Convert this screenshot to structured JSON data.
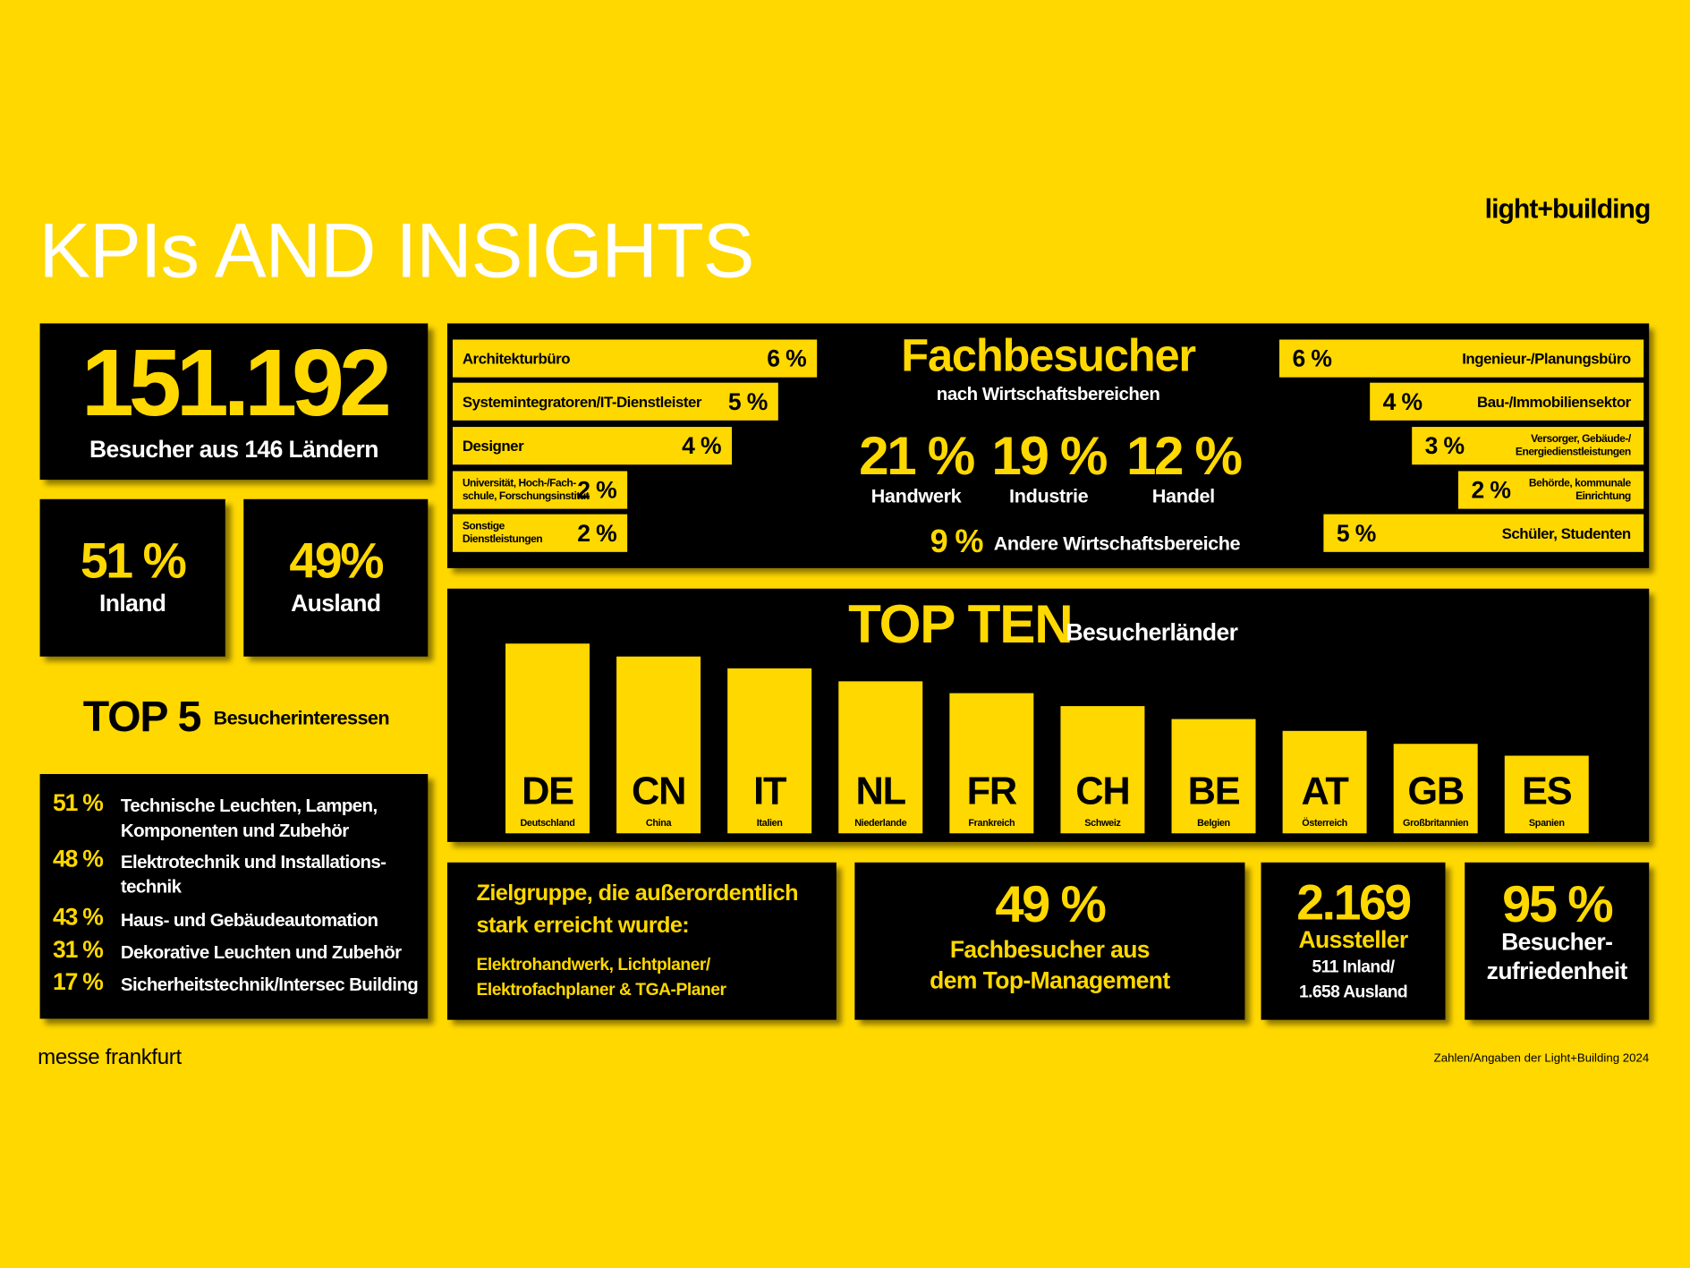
{
  "header": {
    "title": "KPIs AND INSIGHTS",
    "brand": "light+building"
  },
  "visitors": {
    "value": "151.192",
    "label": "Besucher aus 146 Ländern"
  },
  "split": [
    {
      "value": "51 %",
      "label": "Inland"
    },
    {
      "value": "49%",
      "label": "Ausland"
    }
  ],
  "top5": {
    "title": "TOP 5",
    "subtitle": "Besucherinteressen",
    "items": [
      {
        "value": "51 %",
        "label": "Technische Leuchten, Lampen,\nKomponenten und Zubehör"
      },
      {
        "value": "48 %",
        "label": "Elektrotechnik und Installations-\ntechnik"
      },
      {
        "value": "43 %",
        "label": "Haus- und Gebäudeautomation"
      },
      {
        "value": "31 %",
        "label": "Dekorative Leuchten und Zubehör"
      },
      {
        "value": "17 %",
        "label": "Sicherheitstechnik/Intersec Building"
      }
    ]
  },
  "fachbesucher": {
    "title": "Fachbesucher",
    "subtitle": "nach Wirtschaftsbereichen",
    "left": [
      {
        "label": "Architekturbüro",
        "value": "6 %"
      },
      {
        "label": "Systemintegratoren/IT-Dienstleister",
        "value": "5 %"
      },
      {
        "label": "Designer",
        "value": "4 %"
      },
      {
        "label": "Universität, Hoch-/Fach-\nschule, Forschungsinstitut",
        "value": "2 %"
      },
      {
        "label": "Sonstige\nDienstleistungen",
        "value": "2 %"
      }
    ],
    "right": [
      {
        "label": "Ingenieur-/Planungsbüro",
        "value": "6 %"
      },
      {
        "label": "Bau-/Immobiliensektor",
        "value": "4 %"
      },
      {
        "label": "Versorger, Gebäude-/\nEnergiedienstleistungen",
        "value": "3 %"
      },
      {
        "label": "Behörde, kommunale\nEinrichtung",
        "value": "2 %"
      },
      {
        "label": "Schüler, Studenten",
        "value": "5 %"
      }
    ],
    "main": [
      {
        "value": "21 %",
        "label": "Handwerk"
      },
      {
        "value": "19 %",
        "label": "Industrie"
      },
      {
        "value": "12 %",
        "label": "Handel"
      }
    ],
    "other": {
      "value": "9 %",
      "label": "Andere Wirtschaftsbereiche"
    }
  },
  "top_ten": {
    "title": "TOP TEN",
    "subtitle": "Besucherländer",
    "countries": [
      {
        "code": "DE",
        "name": "Deutschland"
      },
      {
        "code": "CN",
        "name": "China"
      },
      {
        "code": "IT",
        "name": "Italien"
      },
      {
        "code": "NL",
        "name": "Niederlande"
      },
      {
        "code": "FR",
        "name": "Frankreich"
      },
      {
        "code": "CH",
        "name": "Schweiz"
      },
      {
        "code": "BE",
        "name": "Belgien"
      },
      {
        "code": "AT",
        "name": "Österreich"
      },
      {
        "code": "GB",
        "name": "Großbritannien"
      },
      {
        "code": "ES",
        "name": "Spanien"
      }
    ]
  },
  "target_group": {
    "title": "Zielgruppe, die außerordentlich\nstark erreicht wurde:",
    "text": "Elektrohandwerk, Lichtplaner/\nElektrofachplaner & TGA-Planer"
  },
  "management": {
    "value": "49 %",
    "label": "Fachbesucher aus\ndem Top-Management"
  },
  "exhibitors": {
    "value": "2.169",
    "label": "Aussteller",
    "detail": "511 Inland/\n1.658 Ausland"
  },
  "satisfaction": {
    "value": "95 %",
    "label": "Besucher-\nzufriedenheit"
  },
  "footer": {
    "left": "messe frankfurt",
    "right": "Zahlen/Angaben der Light+Building 2024"
  }
}
